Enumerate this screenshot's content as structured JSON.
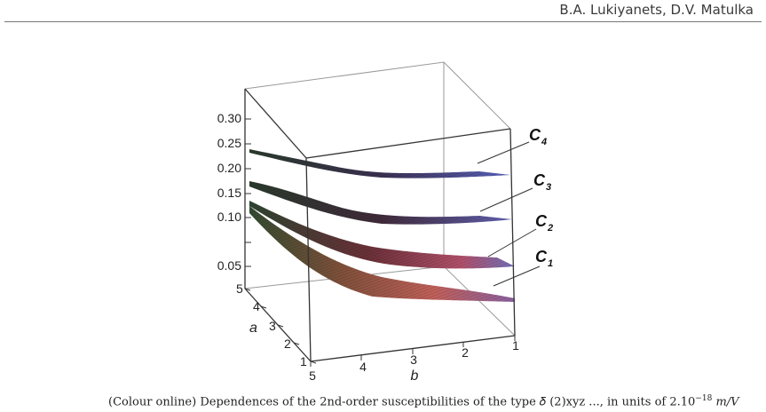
{
  "header": {
    "authors": "B.A. Lukiyanets, D.V. Matulka"
  },
  "figure": {
    "z_ticks": [
      "0.30",
      "0.25",
      "0.20",
      "0.15",
      "0.10",
      "0.05"
    ],
    "a_axis": {
      "label": "a",
      "ticks": [
        "5",
        "4",
        "3",
        "2",
        "1"
      ]
    },
    "b_axis": {
      "label": "b",
      "ticks": [
        "5",
        "4",
        "3",
        "2",
        "1"
      ]
    },
    "surfaces": [
      {
        "label_main": "C",
        "label_sub": "4",
        "front_edge_z": [
          0.245,
          0.238,
          0.222,
          0.214,
          0.212
        ],
        "side_edge_z_b1": [
          0.245,
          0.238,
          0.223,
          0.215,
          0.212
        ]
      },
      {
        "label_main": "C",
        "label_sub": "3",
        "front_edge_z": [
          0.196,
          0.185,
          0.17,
          0.162,
          0.16
        ]
      },
      {
        "label_main": "C",
        "label_sub": "2",
        "front_edge_z": [
          0.158,
          0.12,
          0.1,
          0.09,
          0.088
        ]
      },
      {
        "label_main": "C",
        "label_sub": "1",
        "front_edge_z": [
          0.145,
          0.09,
          0.05,
          0.03,
          0.025
        ]
      }
    ]
  },
  "caption": {
    "text": "(Colour online) Dependences of the 2nd-order susceptibilities of the type  𝛿 (2)xyz ..., in units of 2.10",
    "exponent": "−18",
    "unit": "m/V"
  }
}
